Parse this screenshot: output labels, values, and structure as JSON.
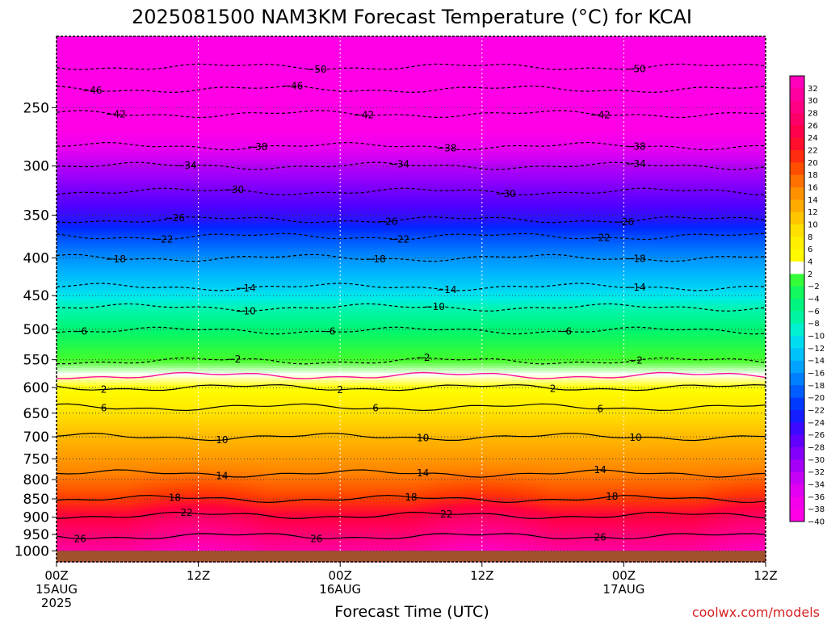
{
  "chart_data": {
    "type": "heatmap",
    "title": "2025081500 NAM3KM Forecast Temperature (°C) for KCAI",
    "xlabel": "Forecast Time (UTC)",
    "ylabel": "",
    "x_range_hours": [
      0,
      60
    ],
    "x_ticks": [
      {
        "hour": 0,
        "lines": [
          "00Z",
          "15AUG",
          "2025"
        ]
      },
      {
        "hour": 12,
        "lines": [
          "12Z"
        ]
      },
      {
        "hour": 24,
        "lines": [
          "00Z",
          "16AUG"
        ]
      },
      {
        "hour": 36,
        "lines": [
          "12Z"
        ]
      },
      {
        "hour": 48,
        "lines": [
          "00Z",
          "17AUG"
        ]
      },
      {
        "hour": 60,
        "lines": [
          "12Z"
        ]
      }
    ],
    "y_axis": "pressure_hPa",
    "y_scale": "log",
    "y_range": [
      1035,
      200
    ],
    "y_ticks": [
      250,
      300,
      350,
      400,
      450,
      500,
      550,
      600,
      650,
      700,
      750,
      800,
      850,
      900,
      950,
      1000
    ],
    "ground_level_hPa": 1000,
    "grid": true,
    "colorbar": {
      "location": "right",
      "levels": [
        32,
        30,
        28,
        26,
        24,
        22,
        20,
        18,
        16,
        14,
        12,
        10,
        8,
        6,
        4,
        2,
        -2,
        -4,
        -6,
        -8,
        -10,
        -12,
        -14,
        -16,
        -18,
        -20,
        -22,
        -24,
        -26,
        -28,
        -30,
        -32,
        -34,
        -36,
        -38,
        -40
      ]
    },
    "contour_lines": [
      {
        "temp": 26,
        "pressure_hPa": 955,
        "label_at_hours": [
          2,
          22,
          46
        ]
      },
      {
        "temp": 22,
        "pressure_hPa": 895,
        "label_at_hours": [
          11,
          33
        ]
      },
      {
        "temp": 18,
        "pressure_hPa": 850,
        "label_at_hours": [
          10,
          30,
          47
        ]
      },
      {
        "temp": 14,
        "pressure_hPa": 785,
        "label_at_hours": [
          14,
          31,
          46
        ]
      },
      {
        "temp": 10,
        "pressure_hPa": 700,
        "label_at_hours": [
          14,
          31,
          49
        ]
      },
      {
        "temp": 6,
        "pressure_hPa": 638,
        "label_at_hours": [
          4,
          27,
          46
        ]
      },
      {
        "temp": 2,
        "pressure_hPa": 600,
        "label_at_hours": [
          4,
          24,
          42
        ]
      },
      {
        "temp": -2,
        "pressure_hPa": 552,
        "label_at_hours": [
          15,
          31,
          49
        ]
      },
      {
        "temp": -6,
        "pressure_hPa": 502,
        "label_at_hours": [
          2,
          23,
          43
        ]
      },
      {
        "temp": -10,
        "pressure_hPa": 467,
        "label_at_hours": [
          16,
          32
        ]
      },
      {
        "temp": -14,
        "pressure_hPa": 438,
        "label_at_hours": [
          16,
          33,
          49
        ]
      },
      {
        "temp": -18,
        "pressure_hPa": 400,
        "label_at_hours": [
          5,
          27,
          49
        ]
      },
      {
        "temp": -22,
        "pressure_hPa": 374,
        "label_at_hours": [
          9,
          29,
          46
        ]
      },
      {
        "temp": -26,
        "pressure_hPa": 355,
        "label_at_hours": [
          10,
          28,
          48
        ]
      },
      {
        "temp": -30,
        "pressure_hPa": 325,
        "label_at_hours": [
          15,
          38
        ]
      },
      {
        "temp": -34,
        "pressure_hPa": 300,
        "label_at_hours": [
          11,
          29,
          49
        ]
      },
      {
        "temp": -38,
        "pressure_hPa": 282,
        "label_at_hours": [
          17,
          33,
          49
        ]
      },
      {
        "temp": -42,
        "pressure_hPa": 255,
        "label_at_hours": [
          5,
          26,
          46
        ]
      },
      {
        "temp": -46,
        "pressure_hPa": 236,
        "label_at_hours": [
          3,
          20
        ]
      },
      {
        "temp": -50,
        "pressure_hPa": 220,
        "label_at_hours": [
          22,
          49
        ]
      }
    ],
    "freezing_line_hPa": 578
  },
  "colors": {
    "ground": "#a0522d",
    "freezing_line": "#ff1493",
    "frame": "#000000"
  },
  "credit": "coolwx.com/models",
  "credit_color": "#d62020"
}
